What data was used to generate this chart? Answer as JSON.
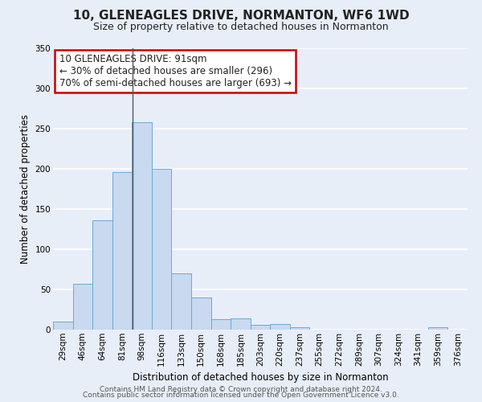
{
  "title": "10, GLENEAGLES DRIVE, NORMANTON, WF6 1WD",
  "subtitle": "Size of property relative to detached houses in Normanton",
  "xlabel": "Distribution of detached houses by size in Normanton",
  "ylabel": "Number of detached properties",
  "bar_labels": [
    "29sqm",
    "46sqm",
    "64sqm",
    "81sqm",
    "98sqm",
    "116sqm",
    "133sqm",
    "150sqm",
    "168sqm",
    "185sqm",
    "203sqm",
    "220sqm",
    "237sqm",
    "255sqm",
    "272sqm",
    "289sqm",
    "307sqm",
    "324sqm",
    "341sqm",
    "359sqm",
    "376sqm"
  ],
  "bar_values": [
    10,
    57,
    136,
    196,
    258,
    200,
    70,
    40,
    13,
    14,
    6,
    7,
    3,
    0,
    0,
    0,
    0,
    0,
    0,
    3,
    0
  ],
  "bar_color": "#c8d9f0",
  "bar_edge_color": "#6aaad4",
  "ylim": [
    0,
    350
  ],
  "yticks": [
    0,
    50,
    100,
    150,
    200,
    250,
    300,
    350
  ],
  "annotation_title": "10 GLENEAGLES DRIVE: 91sqm",
  "annotation_line1": "← 30% of detached houses are smaller (296)",
  "annotation_line2": "70% of semi-detached houses are larger (693) →",
  "annotation_box_color": "#ffffff",
  "annotation_box_edge_color": "#cc0000",
  "property_line_color": "#555555",
  "property_line_x": 3.53,
  "footer1": "Contains HM Land Registry data © Crown copyright and database right 2024.",
  "footer2": "Contains public sector information licensed under the Open Government Licence v3.0.",
  "background_color": "#e8eef8",
  "grid_color": "#ffffff",
  "title_fontsize": 11,
  "subtitle_fontsize": 9,
  "annotation_fontsize": 8.5,
  "axis_label_fontsize": 8.5,
  "tick_fontsize": 7.5,
  "footer_fontsize": 6.5
}
